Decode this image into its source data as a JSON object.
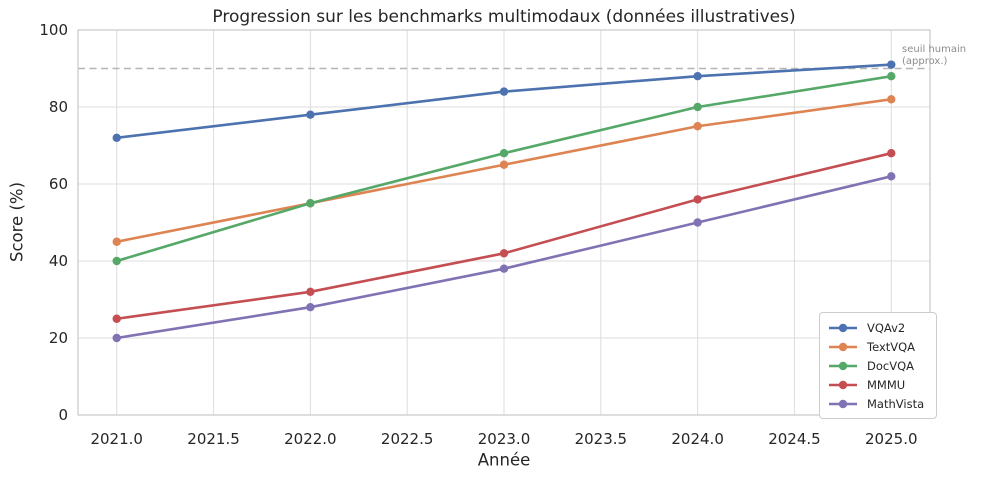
{
  "chart_data": {
    "type": "line",
    "title": "Progression sur les benchmarks multimodaux (données illustratives)",
    "xlabel": "Année",
    "ylabel": "Score (%)",
    "x": [
      2021,
      2022,
      2023,
      2024,
      2025
    ],
    "series": [
      {
        "name": "VQAv2",
        "color": "#4C72B0",
        "values": [
          72,
          78,
          84,
          88,
          91
        ]
      },
      {
        "name": "TextVQA",
        "color": "#DD8452",
        "values": [
          45,
          55,
          65,
          75,
          82
        ]
      },
      {
        "name": "DocVQA",
        "color": "#55A868",
        "values": [
          40,
          55,
          68,
          80,
          88
        ]
      },
      {
        "name": "MMMU",
        "color": "#C44E52",
        "values": [
          25,
          32,
          42,
          56,
          68
        ]
      },
      {
        "name": "MathVista",
        "color": "#8172B3",
        "values": [
          20,
          28,
          38,
          50,
          62
        ]
      }
    ],
    "xlim": [
      2020.8,
      2025.2
    ],
    "ylim": [
      0,
      100
    ],
    "xticks": [
      2021.0,
      2021.5,
      2022.0,
      2022.5,
      2023.0,
      2023.5,
      2024.0,
      2024.5,
      2025.0
    ],
    "xtick_labels": [
      "2021.0",
      "2021.5",
      "2022.0",
      "2022.5",
      "2023.0",
      "2023.5",
      "2024.0",
      "2024.5",
      "2025.0"
    ],
    "yticks": [
      0,
      20,
      40,
      60,
      80,
      100
    ],
    "ytick_labels": [
      "0",
      "20",
      "40",
      "60",
      "80",
      "100"
    ],
    "grid": true,
    "legend_position": "lower right",
    "threshold": {
      "value": 90,
      "label": "seuil humain\n(approx.)"
    },
    "styles": {
      "background": "#ffffff",
      "grid_color": "#dcdcdc",
      "spine_color": "#c9c9c9",
      "threshold_color": "#b5b5b5",
      "tick_text_color": "#262626",
      "annotation_color": "#8c8c8c"
    }
  }
}
